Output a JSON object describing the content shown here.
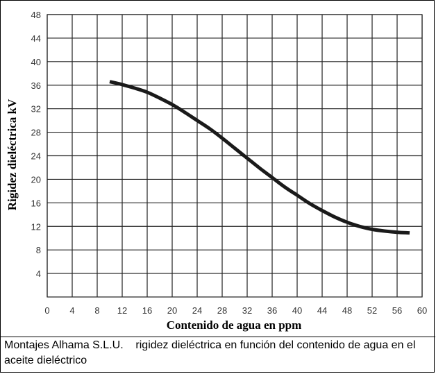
{
  "chart_data": {
    "type": "line",
    "title": "",
    "xlabel": "Contenido de agua en ppm",
    "ylabel": "Rigidez dieléctrica kV",
    "xlim": [
      0,
      60
    ],
    "ylim": [
      0,
      48
    ],
    "xticks": [
      0,
      4,
      8,
      12,
      16,
      20,
      24,
      28,
      32,
      36,
      40,
      44,
      48,
      52,
      56,
      60
    ],
    "yticks": [
      4,
      8,
      12,
      16,
      20,
      24,
      28,
      32,
      36,
      40,
      44,
      48
    ],
    "grid": true,
    "legend": "none",
    "line_color": "#1a1a1a",
    "series": [
      {
        "x": [
          10,
          12,
          14,
          16,
          18,
          20,
          22,
          24,
          26,
          28,
          30,
          32,
          34,
          36,
          38,
          40,
          42,
          44,
          46,
          48,
          50,
          52,
          54,
          56,
          58
        ],
        "values": [
          36.6,
          36.1,
          35.5,
          34.8,
          33.8,
          32.7,
          31.4,
          30.0,
          28.6,
          27.0,
          25.3,
          23.6,
          21.9,
          20.3,
          18.7,
          17.3,
          15.9,
          14.7,
          13.6,
          12.7,
          12.0,
          11.5,
          11.2,
          11.0,
          10.9
        ]
      }
    ]
  },
  "caption": "Montajes Alhama S.L.U.    rigidez dieléctrica en función del contenido de agua en el aceite dieléctrico"
}
